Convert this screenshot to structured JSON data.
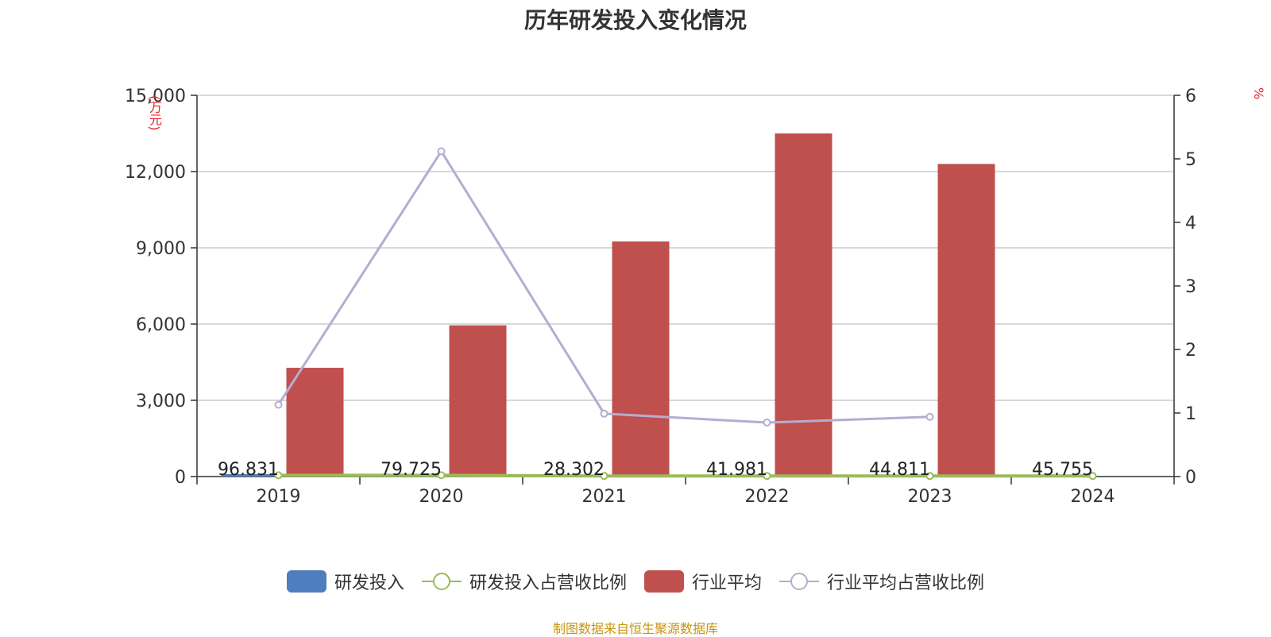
{
  "chart_data": {
    "type": "bar",
    "title": "历年研发投入变化情况",
    "y_left_unit": "(万元)",
    "y_right_unit": "%",
    "categories": [
      "2019",
      "2020",
      "2021",
      "2022",
      "2023",
      "2024"
    ],
    "ylim_left": [
      0,
      15000
    ],
    "ylim_right": [
      0,
      6
    ],
    "y_left_ticks": [
      "0",
      "3,000",
      "6,000",
      "9,000",
      "12,000",
      "15,000"
    ],
    "y_right_ticks": [
      "0",
      "1",
      "2",
      "3",
      "4",
      "5",
      "6"
    ],
    "grid": true,
    "legend_position": "bottom",
    "series": [
      {
        "name": "研发投入",
        "type": "bar",
        "axis": "left",
        "color": "#4e7ebe",
        "values": [
          96.831,
          79.725,
          28.302,
          41.981,
          44.811,
          45.755
        ],
        "labels": [
          "96.831",
          "79.725",
          "28.302",
          "41.981",
          "44.811",
          "45.755"
        ]
      },
      {
        "name": "研发投入占营收比例",
        "type": "line",
        "axis": "right",
        "color": "#9bbb59",
        "values": [
          0.02,
          0.02,
          0.01,
          0.01,
          0.01,
          0.01
        ]
      },
      {
        "name": "行业平均",
        "type": "bar",
        "axis": "left",
        "color": "#c0504d",
        "values": [
          4280,
          5950,
          9250,
          13500,
          12300,
          null
        ]
      },
      {
        "name": "行业平均占营收比例",
        "type": "line",
        "axis": "right",
        "color": "#b6acd1",
        "values": [
          1.13,
          5.12,
          0.99,
          0.85,
          0.94,
          null
        ]
      }
    ]
  },
  "source_text": "制图数据来自恒生聚源数据库"
}
